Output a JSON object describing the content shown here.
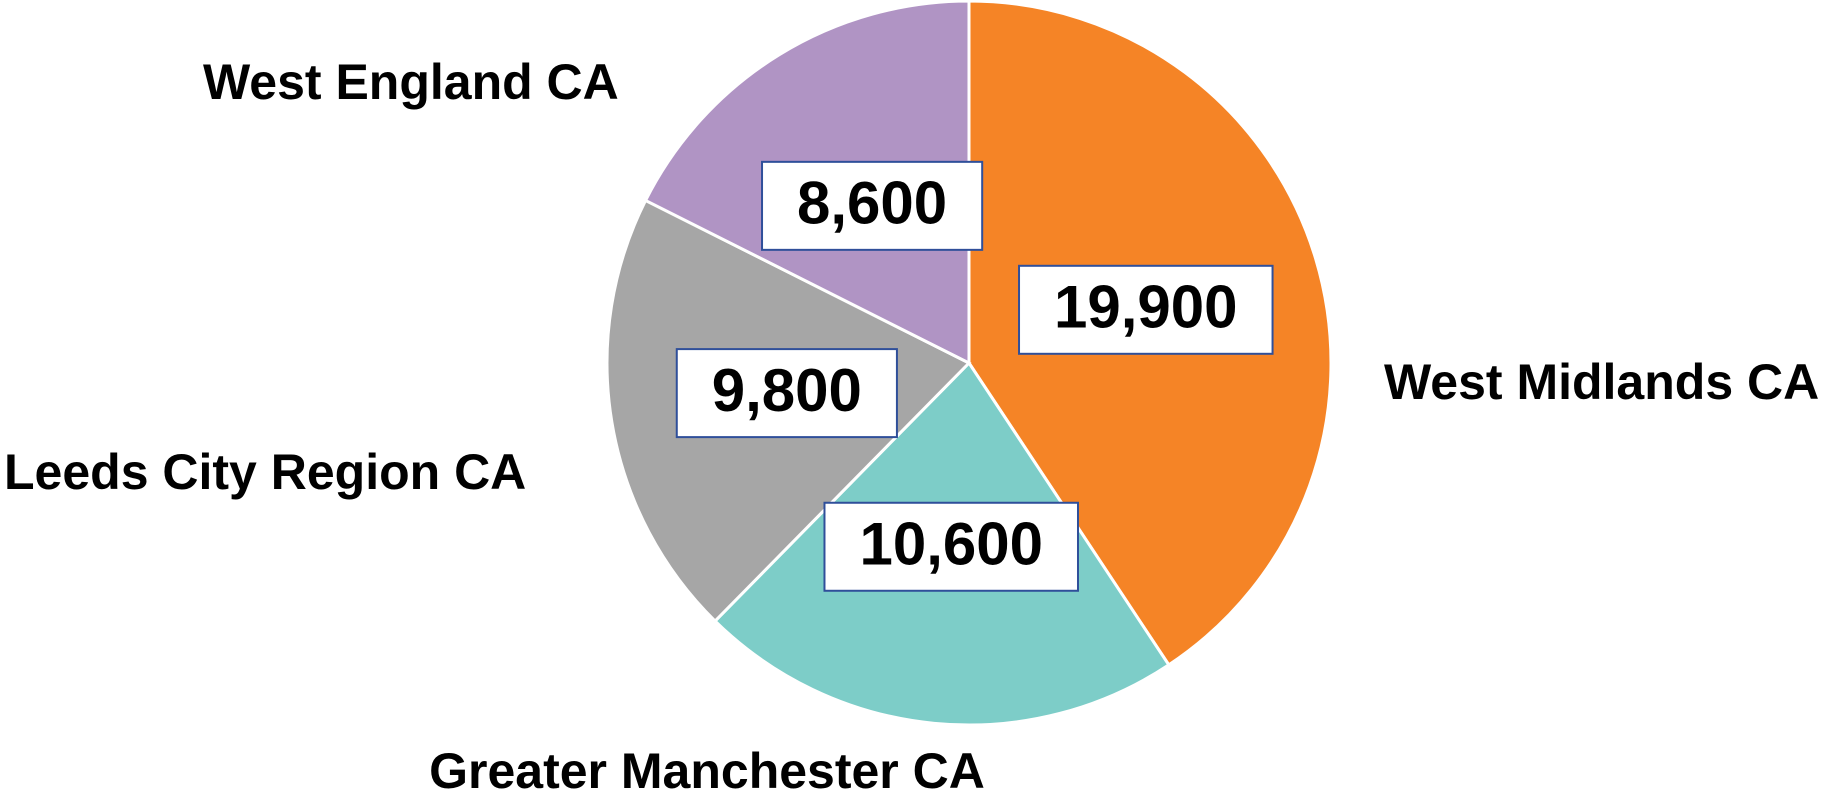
{
  "chart_data": {
    "type": "pie",
    "categories": [
      "West Midlands CA",
      "Greater Manchester CA",
      "Leeds City Region CA",
      "West England CA"
    ],
    "values": [
      19900,
      10600,
      9800,
      8600
    ],
    "value_labels": [
      "19,900",
      "10,600",
      "9,800",
      "8,600"
    ],
    "colors": [
      "#f58426",
      "#7dcdc8",
      "#a6a6a6",
      "#b094c4"
    ]
  }
}
